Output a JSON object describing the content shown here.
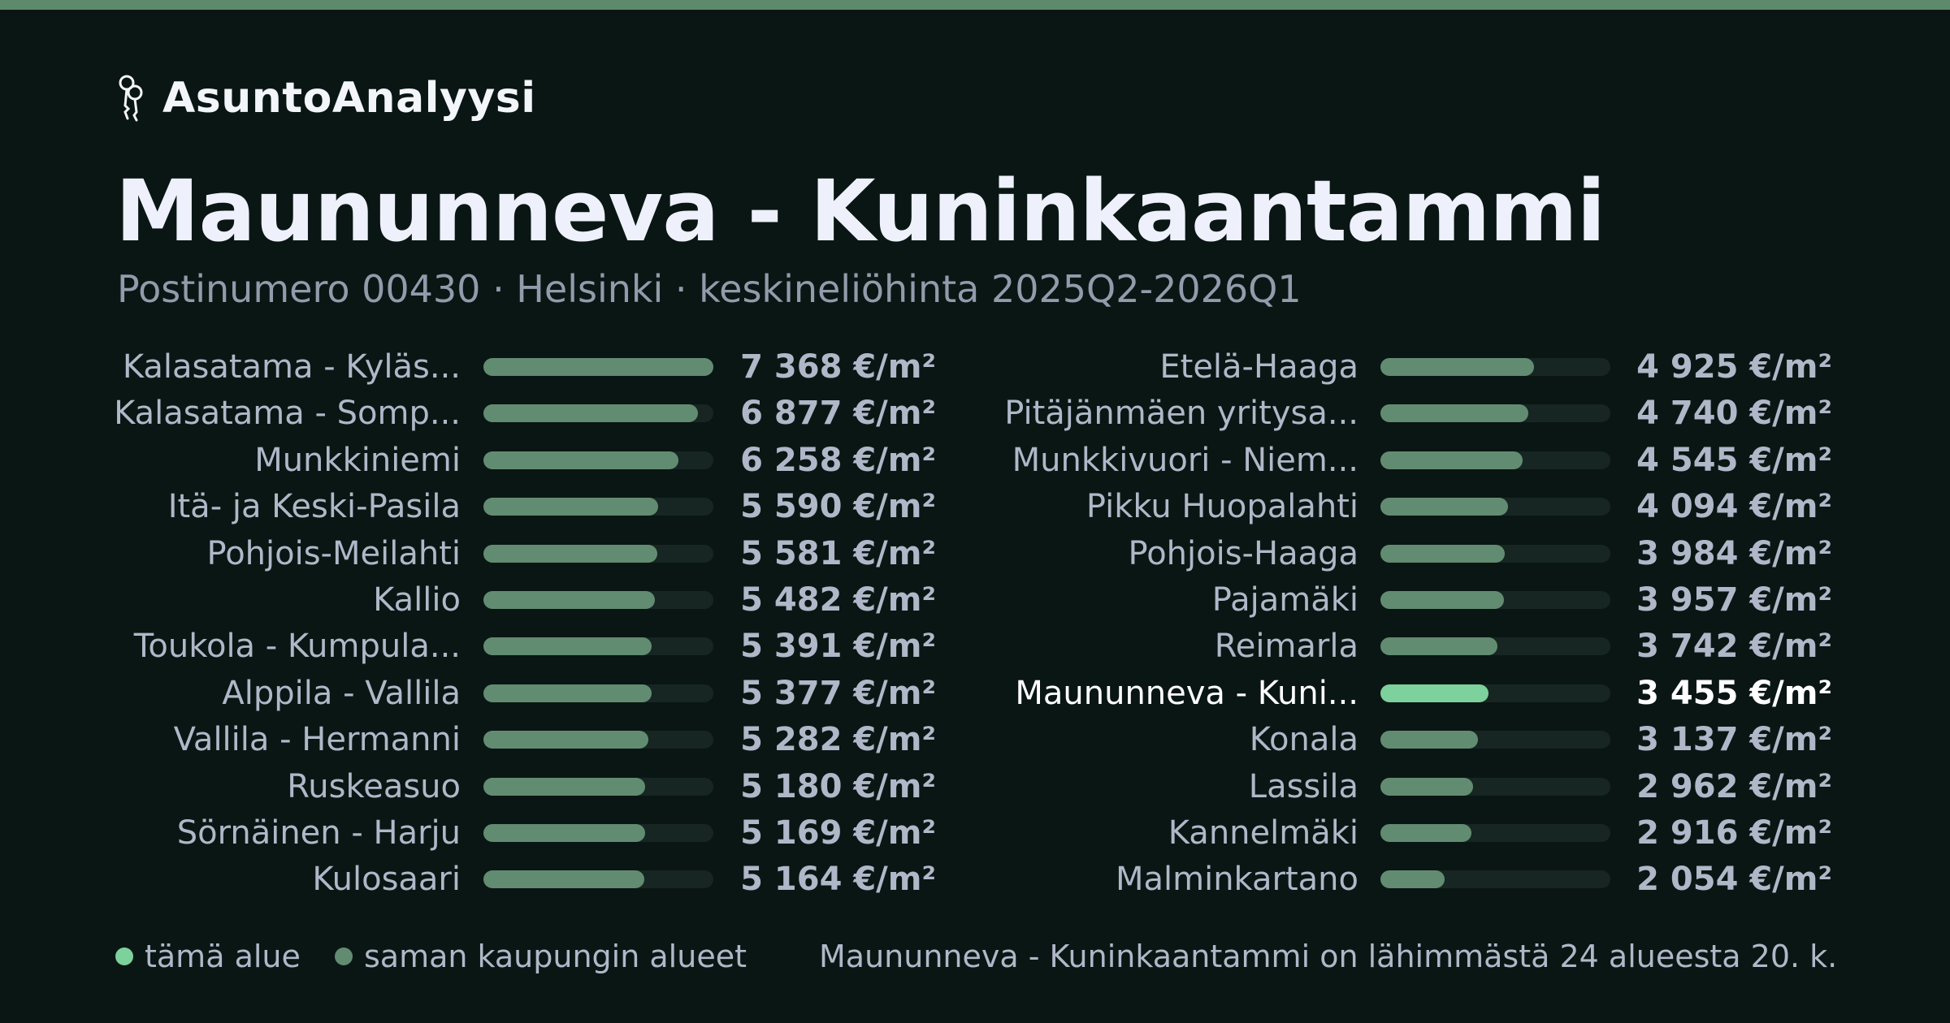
{
  "brand": {
    "name": "AsuntoAnalyysi",
    "icon": "keys-icon"
  },
  "page": {
    "title": "Maununneva - Kuninkaantammi",
    "subtitle": "Postinumero 00430 · Helsinki · keskineliöhinta 2025Q2-2026Q1"
  },
  "colors": {
    "background": "#0a1614",
    "accent": "#5e8a6c",
    "bar": "#628c71",
    "bar_current": "#7dd19c",
    "track": "#172622"
  },
  "chart_data": {
    "type": "bar",
    "orientation": "horizontal",
    "unit": "€/m²",
    "xlim": [
      0,
      7368
    ],
    "highlight_index": 19,
    "categories": [
      "Kalasatama - Kyläs...",
      "Kalasatama - Somp...",
      "Munkkiniemi",
      "Itä- ja Keski-Pasila",
      "Pohjois-Meilahti",
      "Kallio",
      "Toukola - Kumpula...",
      "Alppila - Vallila",
      "Vallila - Hermanni",
      "Ruskeasuo",
      "Sörnäinen - Harju",
      "Kulosaari",
      "Etelä-Haaga",
      "Pitäjänmäen yritysa...",
      "Munkkivuori - Niem...",
      "Pikku Huopalahti",
      "Pohjois-Haaga",
      "Pajamäki",
      "Reimarla",
      "Maununneva - Kuni...",
      "Konala",
      "Lassila",
      "Kannelmäki",
      "Malminkartano"
    ],
    "values": [
      7368,
      6877,
      6258,
      5590,
      5581,
      5482,
      5391,
      5377,
      5282,
      5180,
      5169,
      5164,
      4925,
      4740,
      4545,
      4094,
      3984,
      3957,
      3742,
      3455,
      3137,
      2962,
      2916,
      2054
    ],
    "value_labels": [
      "7 368 €/m²",
      "6 877 €/m²",
      "6 258 €/m²",
      "5 590 €/m²",
      "5 581 €/m²",
      "5 482 €/m²",
      "5 391 €/m²",
      "5 377 €/m²",
      "5 282 €/m²",
      "5 180 €/m²",
      "5 169 €/m²",
      "5 164 €/m²",
      "4 925 €/m²",
      "4 740 €/m²",
      "4 545 €/m²",
      "4 094 €/m²",
      "3 984 €/m²",
      "3 957 €/m²",
      "3 742 €/m²",
      "3 455 €/m²",
      "3 137 €/m²",
      "2 962 €/m²",
      "2 916 €/m²",
      "2 054 €/m²"
    ],
    "legend": [
      {
        "label": "tämä alue",
        "color": "#7dd19c"
      },
      {
        "label": "saman kaupungin alueet",
        "color": "#628c71"
      }
    ]
  },
  "footer": {
    "note": "Maununneva - Kuninkaantammi on lähimmästä 24 alueesta 20. k..."
  }
}
